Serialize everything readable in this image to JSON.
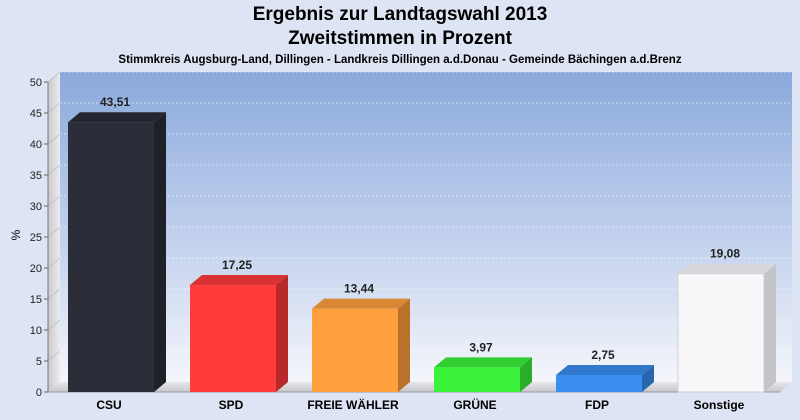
{
  "chart_data": {
    "type": "bar",
    "title": "Ergebnis zur Landtagswahl 2013",
    "subtitle": "Zweitstimmen in Prozent",
    "subsubtitle": "Stimmkreis Augsburg-Land, Dillingen - Landkreis Dillingen a.d.Donau - Gemeinde Bächingen a.d.Brenz",
    "xlabel": "",
    "ylabel": "%",
    "ylim": [
      0,
      50
    ],
    "yticks": [
      "0",
      "5",
      "10",
      "15",
      "20",
      "25",
      "30",
      "35",
      "40",
      "45",
      "50"
    ],
    "categories": [
      "CSU",
      "SPD",
      "FREIE WÄHLER",
      "GRÜNE",
      "FDP",
      "Sonstige"
    ],
    "values": [
      43.51,
      17.25,
      13.44,
      3.97,
      2.75,
      19.08
    ],
    "value_labels": [
      "43,51",
      "17,25",
      "13,44",
      "3,97",
      "2,75",
      "19,08"
    ],
    "colors": [
      "#2b2e38",
      "#ff3b3b",
      "#ff9f3d",
      "#3af23a",
      "#3a8ef0",
      "#f8f8fa"
    ],
    "grid": true,
    "legend": "none"
  }
}
